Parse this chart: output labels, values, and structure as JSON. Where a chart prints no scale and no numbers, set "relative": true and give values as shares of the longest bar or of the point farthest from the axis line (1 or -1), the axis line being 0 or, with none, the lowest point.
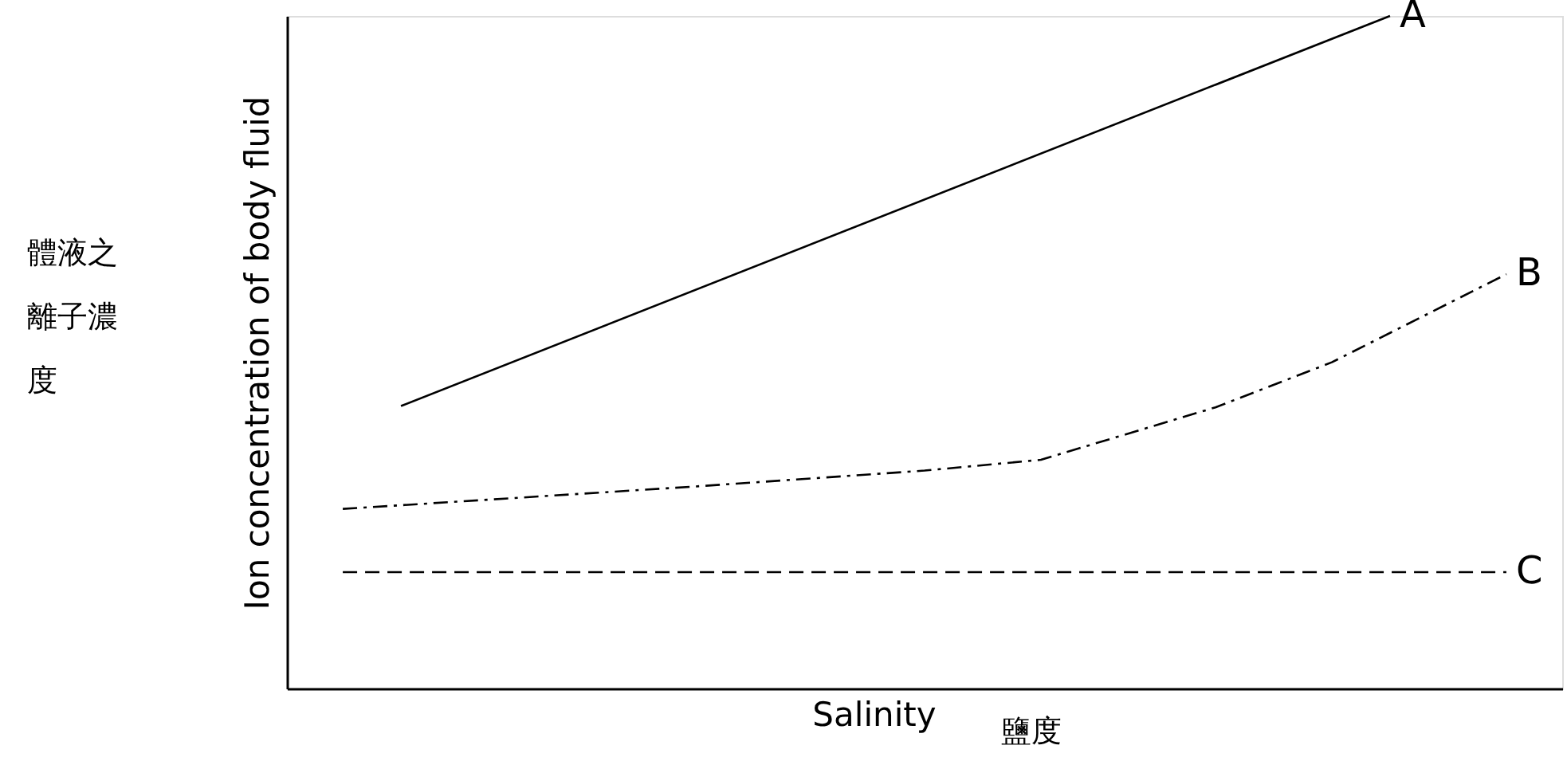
{
  "chart_data": {
    "type": "line",
    "relative": true,
    "ylabel": "Ion concentration of body fluid",
    "xlabel": "Salinity",
    "annotations": [
      "體液之離子濃度",
      "鹽度"
    ],
    "tick_labels": false,
    "grid": false,
    "marker": "none",
    "categories": [
      null,
      null,
      null,
      null,
      null,
      null,
      null,
      null,
      null,
      null,
      null,
      null,
      null,
      null,
      null,
      null,
      null,
      null,
      null,
      null,
      null
    ],
    "series": [
      {
        "name": "A",
        "color": "#000000",
        "line_style": "solid",
        "values": [
          null,
          0.42,
          null,
          null,
          null,
          null,
          null,
          null,
          null,
          null,
          null,
          null,
          null,
          null,
          null,
          null,
          null,
          null,
          1.0,
          null,
          null
        ]
      },
      {
        "name": "B",
        "color": "#000000",
        "line_style": "dashdot",
        "values": [
          0.267,
          null,
          null,
          null,
          null,
          null,
          0.3,
          null,
          null,
          null,
          0.324,
          null,
          0.34,
          null,
          null,
          0.418,
          null,
          0.485,
          null,
          null,
          0.616
        ]
      },
      {
        "name": "C",
        "color": "#000000",
        "line_style": "dashed",
        "values": [
          0.173,
          null,
          null,
          null,
          null,
          null,
          null,
          null,
          null,
          null,
          null,
          null,
          null,
          null,
          null,
          null,
          null,
          null,
          null,
          null,
          0.173
        ]
      }
    ]
  }
}
